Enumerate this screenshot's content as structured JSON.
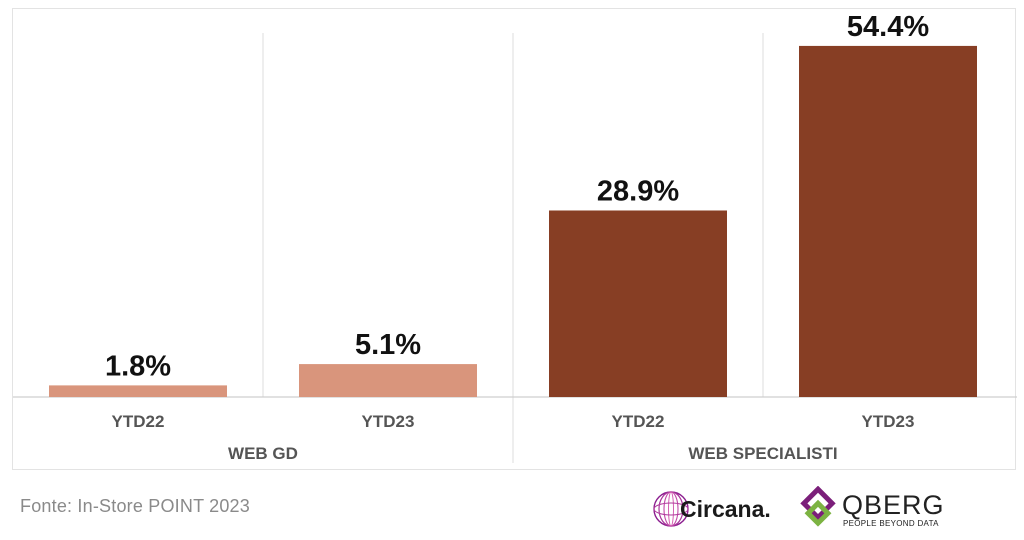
{
  "chart_data": {
    "type": "bar",
    "title": "",
    "xlabel": "",
    "ylabel": "",
    "groups": [
      {
        "name": "WEB GD",
        "categories": [
          "YTD22",
          "YTD23"
        ],
        "values": [
          1.8,
          5.1
        ],
        "value_labels": [
          "1.8%",
          "5.1%"
        ],
        "color": "#d9957c"
      },
      {
        "name": "WEB SPECIALISTI",
        "categories": [
          "YTD22",
          "YTD23"
        ],
        "values": [
          28.9,
          54.4
        ],
        "value_labels": [
          "28.9%",
          "54.4%"
        ],
        "color": "#873e24"
      }
    ],
    "ylim": [
      0,
      60
    ],
    "grid": false,
    "legend": "none"
  },
  "footer": {
    "source": "Fonte: In-Store POINT 2023"
  },
  "logos": {
    "circana": {
      "name": "Circana.",
      "accent": "#8b1d8f",
      "icon": "circana-globe-icon"
    },
    "qberg": {
      "name": "QBERG",
      "tagline": "PEOPLE BEYOND DATA",
      "accent_green": "#7cb342",
      "accent_purple": "#7b1f7a",
      "icon": "qberg-diamond-icon"
    }
  }
}
